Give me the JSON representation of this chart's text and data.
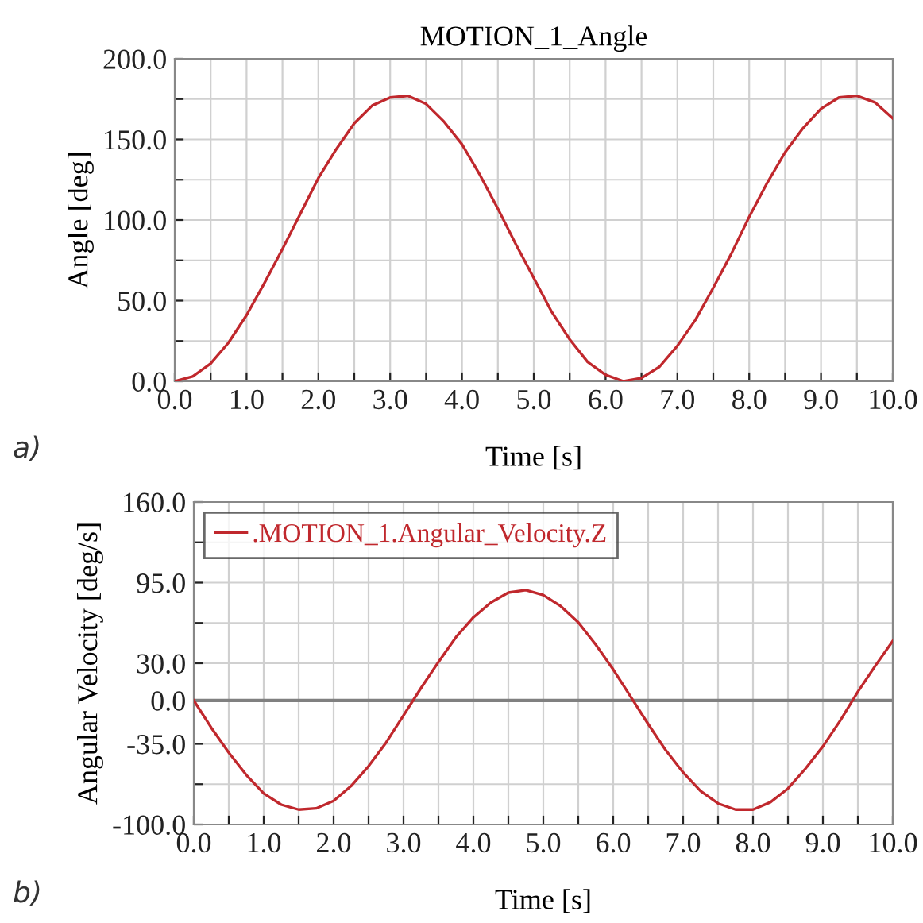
{
  "chart_data": [
    {
      "type": "line",
      "title": "MOTION_1_Angle",
      "xlabel": "Time [s]",
      "ylabel": "Angle [deg]",
      "annotations": [
        "a)"
      ],
      "grid": true,
      "legend": false,
      "marker": "none",
      "line_style": "solid",
      "xlim": [
        0,
        10
      ],
      "ylim": [
        0,
        200
      ],
      "xticks": [
        {
          "value": 0,
          "label": "0.0"
        },
        {
          "value": 0.5,
          "label": null
        },
        {
          "value": 1,
          "label": "1.0"
        },
        {
          "value": 1.5,
          "label": null
        },
        {
          "value": 2,
          "label": "2.0"
        },
        {
          "value": 2.5,
          "label": null
        },
        {
          "value": 3,
          "label": "3.0"
        },
        {
          "value": 3.5,
          "label": null
        },
        {
          "value": 4,
          "label": "4.0"
        },
        {
          "value": 4.5,
          "label": null
        },
        {
          "value": 5,
          "label": "5.0"
        },
        {
          "value": 5.5,
          "label": null
        },
        {
          "value": 6,
          "label": "6.0"
        },
        {
          "value": 6.5,
          "label": null
        },
        {
          "value": 7,
          "label": "7.0"
        },
        {
          "value": 7.5,
          "label": null
        },
        {
          "value": 8,
          "label": "8.0"
        },
        {
          "value": 8.5,
          "label": null
        },
        {
          "value": 9,
          "label": "9.0"
        },
        {
          "value": 9.5,
          "label": null
        },
        {
          "value": 10,
          "label": "10.0"
        }
      ],
      "yticks": [
        {
          "value": 0,
          "label": "0.0"
        },
        {
          "value": 25,
          "label": null
        },
        {
          "value": 50,
          "label": "50.0"
        },
        {
          "value": 75,
          "label": null
        },
        {
          "value": 100,
          "label": "100.0"
        },
        {
          "value": 125,
          "label": null
        },
        {
          "value": 150,
          "label": "150.0"
        },
        {
          "value": 175,
          "label": null
        },
        {
          "value": 200,
          "label": "200.0"
        }
      ],
      "x": [
        0,
        0.25,
        0.5,
        0.75,
        1,
        1.25,
        1.5,
        1.75,
        2,
        2.25,
        2.5,
        2.75,
        3,
        3.25,
        3.5,
        3.75,
        4,
        4.25,
        4.5,
        4.75,
        5,
        5.25,
        5.5,
        5.75,
        6,
        6.25,
        6.5,
        6.75,
        7,
        7.25,
        7.5,
        7.75,
        8,
        8.25,
        8.5,
        8.75,
        9,
        9.25,
        9.5,
        9.75,
        10
      ],
      "series": [
        {
          "color": "#c0282d",
          "values": [
            0,
            3,
            11,
            24,
            41,
            61,
            82,
            104,
            126,
            144,
            160,
            171,
            176,
            177,
            172,
            161,
            147,
            128,
            107,
            85,
            64,
            43,
            26,
            12,
            4,
            0,
            2,
            9,
            22,
            38,
            58,
            79,
            102,
            123,
            142,
            157,
            169,
            176,
            177,
            173,
            163
          ]
        }
      ]
    },
    {
      "type": "line",
      "xlabel": "Time [s]",
      "ylabel": "Angular Velocity [deg/s]",
      "annotations": [
        "b)"
      ],
      "grid": true,
      "legend": "top left",
      "marker": "none",
      "line_style": "solid",
      "xlim": [
        0,
        10
      ],
      "ylim": [
        -100,
        160
      ],
      "xticks": [
        {
          "value": 0,
          "label": "0.0"
        },
        {
          "value": 0.5,
          "label": null
        },
        {
          "value": 1,
          "label": "1.0"
        },
        {
          "value": 1.5,
          "label": null
        },
        {
          "value": 2,
          "label": "2.0"
        },
        {
          "value": 2.5,
          "label": null
        },
        {
          "value": 3,
          "label": "3.0"
        },
        {
          "value": 3.5,
          "label": null
        },
        {
          "value": 4,
          "label": "4.0"
        },
        {
          "value": 4.5,
          "label": null
        },
        {
          "value": 5,
          "label": "5.0"
        },
        {
          "value": 5.5,
          "label": null
        },
        {
          "value": 6,
          "label": "6.0"
        },
        {
          "value": 6.5,
          "label": null
        },
        {
          "value": 7,
          "label": "7.0"
        },
        {
          "value": 7.5,
          "label": null
        },
        {
          "value": 8,
          "label": "8.0"
        },
        {
          "value": 8.5,
          "label": null
        },
        {
          "value": 9,
          "label": "9.0"
        },
        {
          "value": 9.5,
          "label": null
        },
        {
          "value": 10,
          "label": "10.0"
        }
      ],
      "yticks": [
        {
          "value": -100,
          "label": "-100.0"
        },
        {
          "value": -67.5,
          "label": null
        },
        {
          "value": -35,
          "label": "-35.0"
        },
        {
          "value": 0,
          "label": "0.0"
        },
        {
          "value": 30,
          "label": "30.0"
        },
        {
          "value": 62.5,
          "label": null
        },
        {
          "value": 95,
          "label": "95.0"
        },
        {
          "value": 127.5,
          "label": null
        },
        {
          "value": 160,
          "label": "160.0"
        }
      ],
      "ref_lines": [
        {
          "axis": "y",
          "value": 0,
          "color": "#808080"
        }
      ],
      "x": [
        0,
        0.25,
        0.5,
        0.75,
        1,
        1.25,
        1.5,
        1.75,
        2,
        2.25,
        2.5,
        2.75,
        3,
        3.25,
        3.5,
        3.75,
        4,
        4.25,
        4.5,
        4.75,
        5,
        5.25,
        5.5,
        5.75,
        6,
        6.25,
        6.5,
        6.75,
        7,
        7.25,
        7.5,
        7.75,
        8,
        8.25,
        8.5,
        8.75,
        9,
        9.25,
        9.5,
        9.75,
        10
      ],
      "series": [
        {
          "name": ".MOTION_1.Angular_Velocity.Z",
          "color": "#c0282d",
          "values": [
            0,
            -22,
            -42,
            -60,
            -75,
            -84,
            -88,
            -87,
            -81,
            -69,
            -53,
            -34,
            -12,
            10,
            31,
            51,
            67,
            79,
            87,
            89,
            85,
            76,
            63,
            45,
            25,
            3,
            -19,
            -40,
            -58,
            -73,
            -83,
            -88,
            -88,
            -82,
            -71,
            -55,
            -37,
            -16,
            7,
            28,
            48
          ]
        }
      ]
    }
  ]
}
